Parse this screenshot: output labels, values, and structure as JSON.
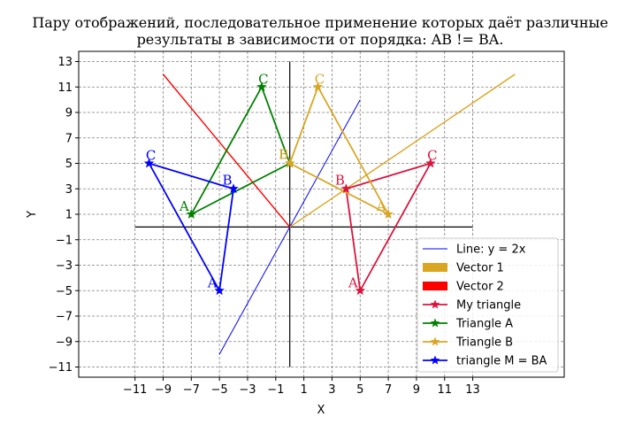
{
  "chart_data": {
    "type": "line",
    "title_line1": "Пару отображений, последовательное применение которых даёт различные",
    "title_line2": "результаты в зависимости от порядка: AB != BA.",
    "xlabel": "X",
    "ylabel": "Y",
    "xlim": [
      -15,
      19.5
    ],
    "ylim": [
      -11.8,
      13.8
    ],
    "xticks": [
      -11,
      -9,
      -7,
      -5,
      -3,
      -1,
      1,
      3,
      5,
      7,
      9,
      11,
      13
    ],
    "xtick_labels": [
      "−11",
      "−9",
      "−7",
      "−5",
      "−3",
      "−1",
      "1",
      "3",
      "5",
      "7",
      "9",
      "11",
      "13"
    ],
    "yticks": [
      -11,
      -9,
      -7,
      -5,
      -3,
      -1,
      1,
      3,
      5,
      7,
      9,
      11,
      13
    ],
    "ytick_labels": [
      "−11",
      "−9",
      "−7",
      "−5",
      "−3",
      "−1",
      "1",
      "3",
      "5",
      "7",
      "9",
      "11",
      "13"
    ],
    "grid": true,
    "legend_position": "lower-right",
    "axes_lines": {
      "horizontal": {
        "x": [
          -11,
          13
        ],
        "y": 0
      },
      "vertical": {
        "x": 0,
        "y": [
          -11,
          13
        ]
      }
    },
    "line_y2x": {
      "name": "Line: y = 2x",
      "color": "#0000ff",
      "x": [
        -5,
        5
      ],
      "y": [
        -10,
        10
      ]
    },
    "vector1": {
      "name": "Vector 1",
      "color": "#daa520",
      "x": [
        0,
        16
      ],
      "y": [
        0,
        12
      ]
    },
    "vector2": {
      "name": "Vector 2",
      "color": "#ff0000",
      "x": [
        0,
        -9
      ],
      "y": [
        0,
        12
      ]
    },
    "triangles": [
      {
        "name": "My triangle",
        "color": "#dc143c",
        "points": [
          [
            5,
            -5
          ],
          [
            4,
            3
          ],
          [
            10,
            5
          ]
        ],
        "labels": [
          "A",
          "B",
          "C"
        ]
      },
      {
        "name": "Triangle A",
        "color": "#008000",
        "points": [
          [
            -7,
            1
          ],
          [
            0,
            5
          ],
          [
            -2,
            11
          ]
        ],
        "labels": [
          "A",
          "B",
          "C"
        ]
      },
      {
        "name": "Triangle B",
        "color": "#daa520",
        "points": [
          [
            7,
            1
          ],
          [
            0,
            5
          ],
          [
            2,
            11
          ]
        ],
        "labels": [
          "A",
          "B",
          "C"
        ]
      },
      {
        "name": "triangle M = BA",
        "color": "#0000ff",
        "points": [
          [
            -5,
            -5
          ],
          [
            -4,
            3
          ],
          [
            -10,
            5
          ]
        ],
        "labels": [
          "A",
          "B",
          "C"
        ]
      }
    ],
    "legend": [
      {
        "label": "Line: y = 2x",
        "kind": "line",
        "color": "#0000ff"
      },
      {
        "label": "Vector 1",
        "kind": "patch",
        "color": "#daa520"
      },
      {
        "label": "Vector 2",
        "kind": "patch",
        "color": "#ff0000"
      },
      {
        "label": "My triangle",
        "kind": "marker-line",
        "color": "#dc143c"
      },
      {
        "label": "Triangle A",
        "kind": "marker-line",
        "color": "#008000"
      },
      {
        "label": "Triangle B",
        "kind": "marker-line",
        "color": "#daa520"
      },
      {
        "label": "triangle M = BA",
        "kind": "marker-line",
        "color": "#0000ff"
      }
    ]
  }
}
